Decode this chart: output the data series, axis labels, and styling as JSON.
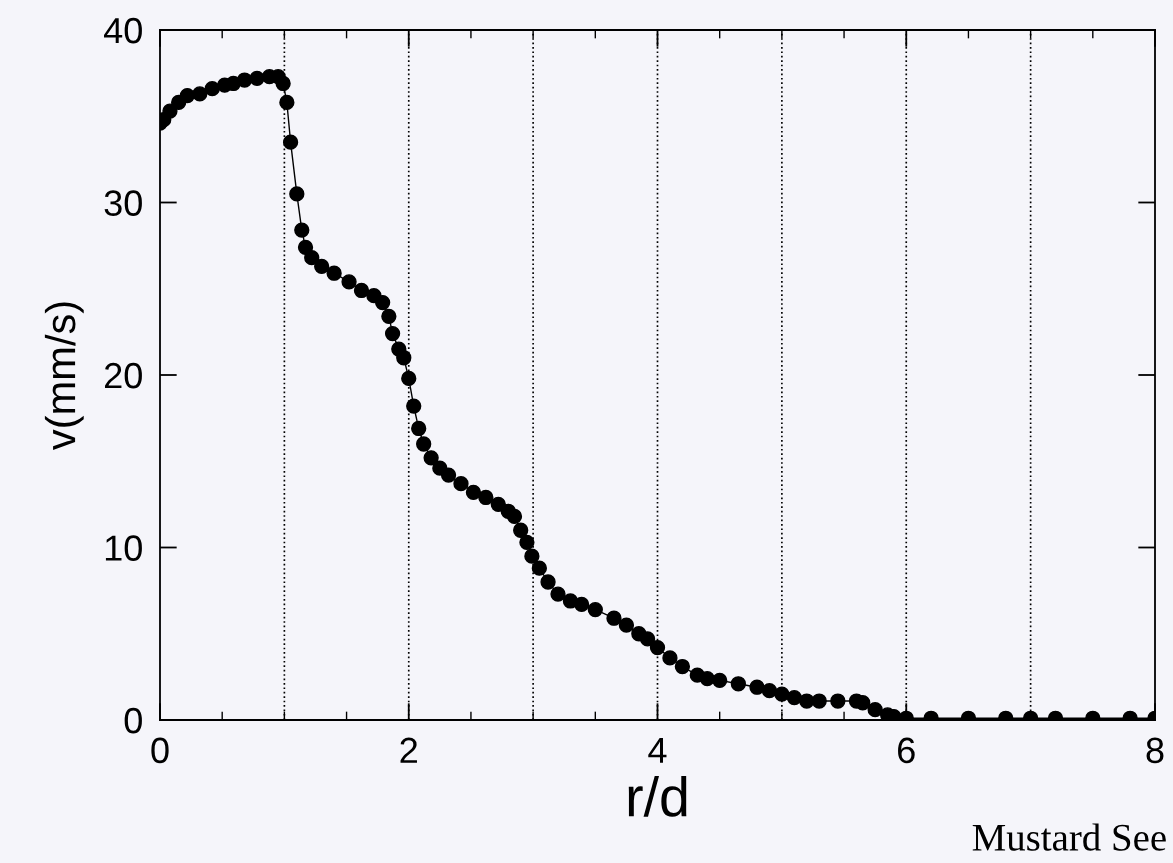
{
  "chart_data": {
    "type": "line",
    "xlabel": "r/d",
    "ylabel": "v(mm/s)",
    "xlim": [
      0,
      8
    ],
    "ylim": [
      0,
      40
    ],
    "xticks": [
      0,
      2,
      4,
      6,
      8
    ],
    "yticks": [
      0,
      10,
      20,
      30,
      40
    ],
    "grid": false,
    "legend": false,
    "marker": "circle",
    "line_style": "solid",
    "ref_lines": [
      {
        "axis": "x",
        "value": 1,
        "line_style": "dotted",
        "color": "#000000"
      },
      {
        "axis": "x",
        "value": 2,
        "line_style": "dotted",
        "color": "#000000"
      },
      {
        "axis": "x",
        "value": 3,
        "line_style": "dotted",
        "color": "#000000"
      },
      {
        "axis": "x",
        "value": 4,
        "line_style": "dotted",
        "color": "#000000"
      },
      {
        "axis": "x",
        "value": 5,
        "line_style": "dotted",
        "color": "#000000"
      },
      {
        "axis": "x",
        "value": 6,
        "line_style": "dotted",
        "color": "#000000"
      },
      {
        "axis": "x",
        "value": 7,
        "line_style": "dotted",
        "color": "#000000"
      }
    ],
    "annotations": [
      "Mustard See"
    ],
    "series": [
      {
        "color": "#000000",
        "x": [
          0.0,
          0.03,
          0.08,
          0.15,
          0.22,
          0.32,
          0.42,
          0.52,
          0.59,
          0.68,
          0.78,
          0.88,
          0.95,
          0.99,
          1.02,
          1.05,
          1.1,
          1.14,
          1.17,
          1.22,
          1.3,
          1.4,
          1.52,
          1.62,
          1.72,
          1.79,
          1.84,
          1.87,
          1.92,
          1.96,
          2.0,
          2.04,
          2.08,
          2.12,
          2.18,
          2.25,
          2.32,
          2.42,
          2.52,
          2.62,
          2.72,
          2.8,
          2.85,
          2.9,
          2.95,
          2.99,
          3.05,
          3.12,
          3.2,
          3.3,
          3.39,
          3.5,
          3.65,
          3.75,
          3.85,
          3.92,
          4.0,
          4.1,
          4.2,
          4.32,
          4.4,
          4.5,
          4.65,
          4.8,
          4.9,
          5.0,
          5.1,
          5.2,
          5.3,
          5.45,
          5.6,
          5.65,
          5.75,
          5.85,
          5.9,
          6.0,
          6.2,
          6.5,
          6.8,
          7.0,
          7.2,
          7.5,
          7.8,
          8.0
        ],
        "values": [
          34.6,
          34.8,
          35.3,
          35.8,
          36.2,
          36.3,
          36.6,
          36.8,
          36.9,
          37.1,
          37.2,
          37.3,
          37.3,
          36.9,
          35.8,
          33.5,
          30.5,
          28.4,
          27.4,
          26.8,
          26.3,
          25.9,
          25.4,
          24.9,
          24.6,
          24.2,
          23.4,
          22.4,
          21.5,
          21.0,
          19.8,
          18.2,
          16.9,
          16.0,
          15.2,
          14.6,
          14.2,
          13.7,
          13.2,
          12.9,
          12.5,
          12.1,
          11.8,
          11.0,
          10.3,
          9.5,
          8.8,
          8.0,
          7.3,
          6.9,
          6.7,
          6.4,
          5.9,
          5.5,
          5.0,
          4.7,
          4.2,
          3.6,
          3.1,
          2.6,
          2.4,
          2.3,
          2.1,
          1.9,
          1.7,
          1.5,
          1.3,
          1.1,
          1.1,
          1.1,
          1.1,
          1.0,
          0.6,
          0.3,
          0.2,
          0.1,
          0.1,
          0.1,
          0.1,
          0.1,
          0.1,
          0.1,
          0.1,
          0.1
        ]
      }
    ]
  }
}
